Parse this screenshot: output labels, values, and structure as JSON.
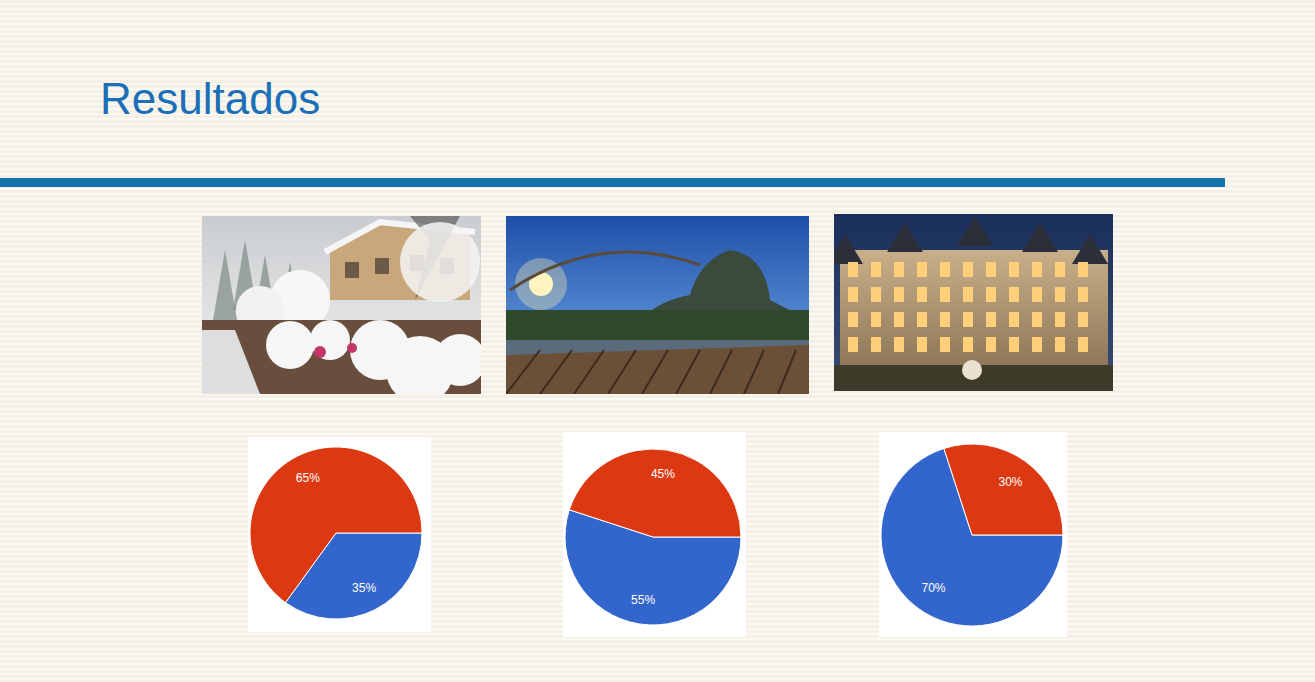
{
  "title": "Resultados",
  "chart_data": [
    {
      "type": "pie",
      "values": [
        35,
        65
      ],
      "value_labels": [
        "35%",
        "65%"
      ],
      "colors": [
        "#3366cc",
        "#dc3912"
      ],
      "data_labels": true
    },
    {
      "type": "pie",
      "values": [
        55,
        45
      ],
      "value_labels": [
        "55%",
        "45%"
      ],
      "colors": [
        "#3366cc",
        "#dc3912"
      ],
      "data_labels": true
    },
    {
      "type": "pie",
      "values": [
        70,
        30
      ],
      "value_labels": [
        "70%",
        "30%"
      ],
      "colors": [
        "#3366cc",
        "#dc3912"
      ],
      "data_labels": true
    }
  ]
}
